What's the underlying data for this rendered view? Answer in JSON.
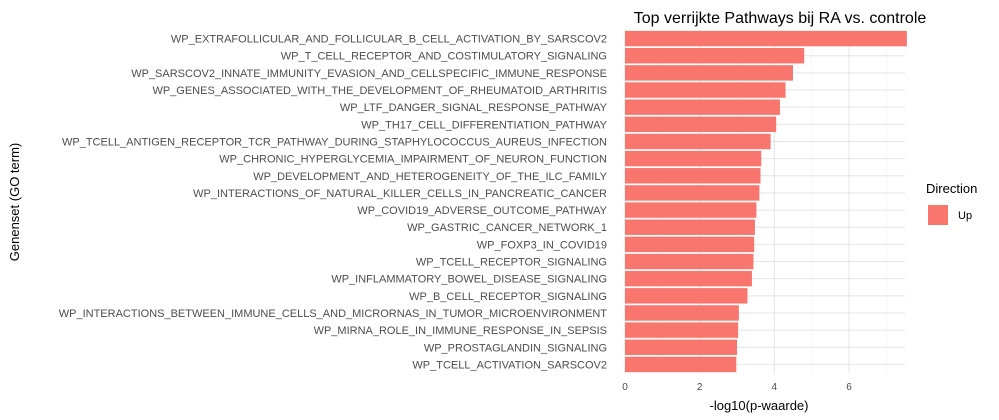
{
  "chart_data": {
    "type": "bar",
    "orientation": "horizontal",
    "title": "Top verrijkte Pathways bij RA vs. controle",
    "xlabel": "-log10(p-waarde)",
    "ylabel": "Genenset (GO term)",
    "xlim": [
      0,
      7.5
    ],
    "x_ticks": [
      0,
      2,
      4,
      6
    ],
    "grid": true,
    "legend": {
      "title": "Direction",
      "position": "right",
      "entries": [
        {
          "label": "Up",
          "color": "#F8766D"
        }
      ]
    },
    "categories": [
      "WP_EXTRAFOLLICULAR_AND_FOLLICULAR_B_CELL_ACTIVATION_BY_SARSCOV2",
      "WP_T_CELL_RECEPTOR_AND_COSTIMULATORY_SIGNALING",
      "WP_SARSCOV2_INNATE_IMMUNITY_EVASION_AND_CELLSPECIFIC_IMMUNE_RESPONSE",
      "WP_GENES_ASSOCIATED_WITH_THE_DEVELOPMENT_OF_RHEUMATOID_ARTHRITIS",
      "WP_LTF_DANGER_SIGNAL_RESPONSE_PATHWAY",
      "WP_TH17_CELL_DIFFERENTIATION_PATHWAY",
      "WP_TCELL_ANTIGEN_RECEPTOR_TCR_PATHWAY_DURING_STAPHYLOCOCCUS_AUREUS_INFECTION",
      "WP_CHRONIC_HYPERGLYCEMIA_IMPAIRMENT_OF_NEURON_FUNCTION",
      "WP_DEVELOPMENT_AND_HETEROGENEITY_OF_THE_ILC_FAMILY",
      "WP_INTERACTIONS_OF_NATURAL_KILLER_CELLS_IN_PANCREATIC_CANCER",
      "WP_COVID19_ADVERSE_OUTCOME_PATHWAY",
      "WP_GASTRIC_CANCER_NETWORK_1",
      "WP_FOXP3_IN_COVID19",
      "WP_TCELL_RECEPTOR_SIGNALING",
      "WP_INFLAMMATORY_BOWEL_DISEASE_SIGNALING",
      "WP_B_CELL_RECEPTOR_SIGNALING",
      "WP_INTERACTIONS_BETWEEN_IMMUNE_CELLS_AND_MICRORNAS_IN_TUMOR_MICROENVIRONMENT",
      "WP_MIRNA_ROLE_IN_IMMUNE_RESPONSE_IN_SEPSIS",
      "WP_PROSTAGLANDIN_SIGNALING",
      "WP_TCELL_ACTIVATION_SARSCOV2"
    ],
    "series": [
      {
        "name": "Up",
        "color": "#F8766D",
        "values": [
          7.55,
          4.8,
          4.5,
          4.3,
          4.15,
          4.05,
          3.9,
          3.65,
          3.63,
          3.6,
          3.52,
          3.48,
          3.46,
          3.44,
          3.4,
          3.28,
          3.05,
          3.03,
          3.0,
          2.98
        ]
      }
    ]
  }
}
